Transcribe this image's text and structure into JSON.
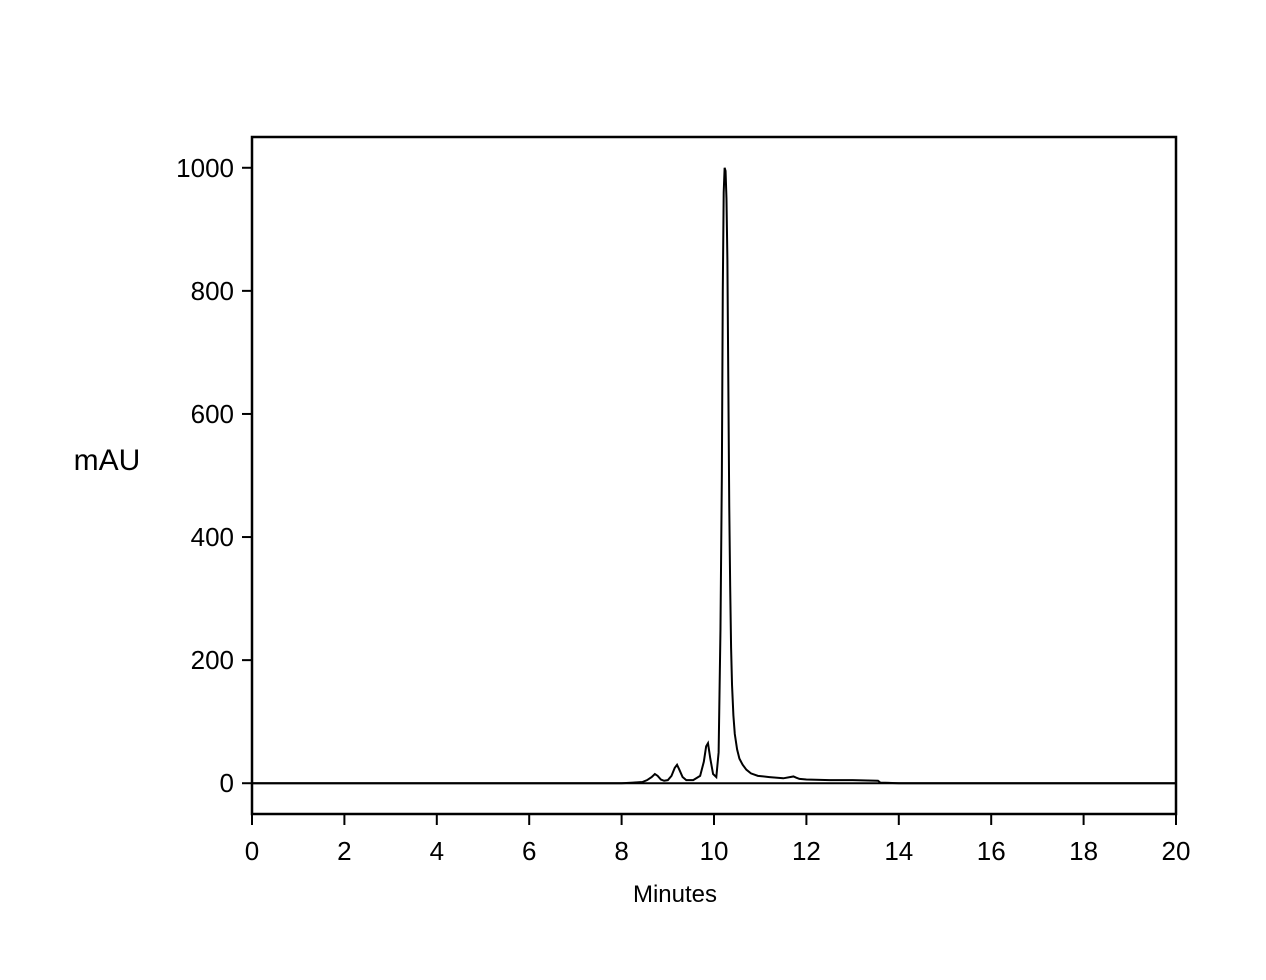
{
  "chart_data": {
    "type": "line",
    "title": "",
    "xlabel": "Minutes",
    "ylabel": "mAU",
    "xlim": [
      0,
      20
    ],
    "ylim": [
      -50,
      1050
    ],
    "x_ticks": [
      "0",
      "2",
      "4",
      "6",
      "8",
      "10",
      "12",
      "14",
      "16",
      "18",
      "20"
    ],
    "y_ticks": [
      "0",
      "200",
      "400",
      "600",
      "800",
      "1000"
    ],
    "grid": false,
    "legend": "none",
    "baseline": {
      "y": 0,
      "label": "0"
    },
    "series": [
      {
        "color": "#000000",
        "x": [
          0,
          8.0,
          8.25,
          8.45,
          8.55,
          8.65,
          8.72,
          8.78,
          8.85,
          8.92,
          9.0,
          9.08,
          9.15,
          9.2,
          9.25,
          9.32,
          9.4,
          9.55,
          9.7,
          9.78,
          9.83,
          9.87,
          9.92,
          9.98,
          10.05,
          10.1,
          10.14,
          10.17,
          10.19,
          10.21,
          10.23,
          10.25,
          10.27,
          10.29,
          10.31,
          10.33,
          10.35,
          10.37,
          10.39,
          10.42,
          10.45,
          10.5,
          10.55,
          10.62,
          10.7,
          10.8,
          10.95,
          11.2,
          11.5,
          11.72,
          11.78,
          11.85,
          12.0,
          12.5,
          13.0,
          13.55,
          13.6,
          14.0,
          16.0,
          18.0,
          20.0
        ],
        "y": [
          0,
          0,
          1,
          2,
          5,
          10,
          15,
          12,
          6,
          4,
          5,
          12,
          25,
          30,
          22,
          10,
          5,
          5,
          12,
          35,
          60,
          65,
          40,
          15,
          10,
          50,
          250,
          500,
          800,
          960,
          1000,
          995,
          950,
          850,
          650,
          450,
          320,
          220,
          160,
          110,
          80,
          55,
          40,
          30,
          22,
          16,
          12,
          10,
          8,
          11,
          9,
          7,
          6,
          5,
          5,
          4,
          1,
          0,
          0,
          0,
          0
        ]
      }
    ]
  }
}
